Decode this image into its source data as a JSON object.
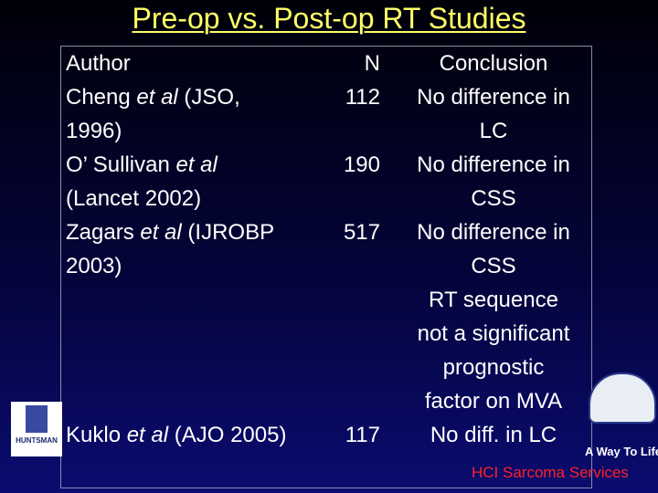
{
  "title": "Pre-op vs. Post-op RT Studies",
  "table": {
    "header": [
      "Author",
      "N",
      "Conclusion"
    ],
    "rows": [
      {
        "author": [
          [
            "Cheng ",
            "et al",
            " (JSO,"
          ],
          [
            "1996)"
          ]
        ],
        "n": "112",
        "conclusion": [
          "No difference in",
          "LC"
        ]
      },
      {
        "author": [
          [
            "O’ Sullivan ",
            "et al"
          ],
          [
            "(Lancet 2002)"
          ]
        ],
        "n": "190",
        "conclusion": [
          "No difference in",
          "CSS"
        ]
      },
      {
        "author": [
          [
            "Zagars ",
            "et al",
            " (IJROBP"
          ],
          [
            "2003)"
          ]
        ],
        "n": "517",
        "conclusion": [
          "No difference in",
          "CSS",
          "RT sequence",
          "not a significant",
          "prognostic",
          "factor on MVA"
        ]
      },
      {
        "author": [
          [
            "Kuklo ",
            "et al",
            " (AJO 2005)"
          ]
        ],
        "n": "117",
        "conclusion": [
          "No diff. in LC"
        ]
      }
    ]
  },
  "logos": {
    "left": "HUNTSMAN",
    "right": "A Way To Life"
  },
  "footer": "HCI Sarcoma Services"
}
